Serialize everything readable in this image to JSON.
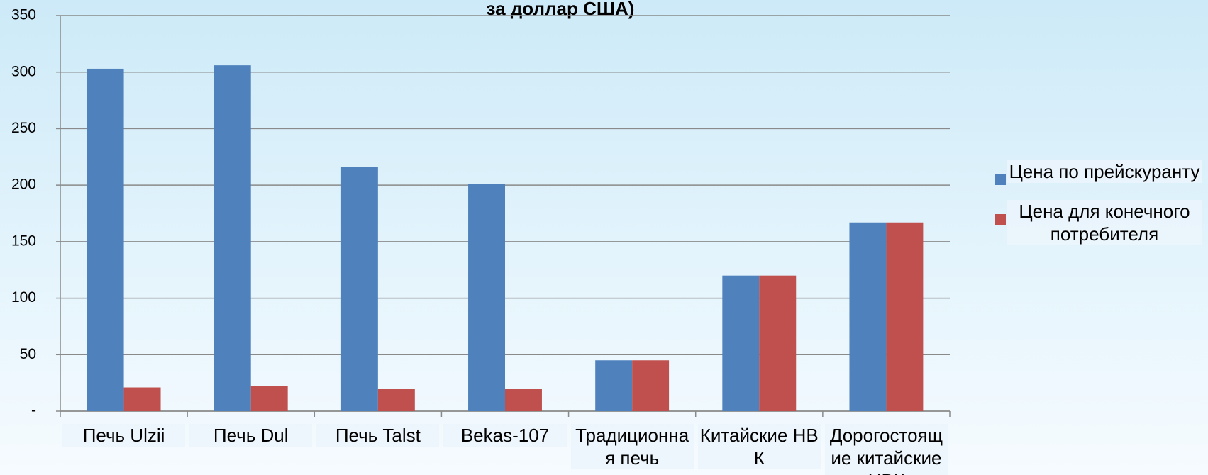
{
  "chart_data": {
    "type": "bar",
    "title": "за доллар США)",
    "categories": [
      "Печь Ulzii",
      "Печь Dul",
      "Печь Talst",
      "Bekas-107",
      "Традиционная печь",
      "Китайские НВК",
      "Дорогостоящие китайские НВК"
    ],
    "series": [
      {
        "name": "Цена по прейскуранту",
        "color": "#4f81bd",
        "values": [
          303,
          306,
          216,
          201,
          45,
          120,
          167
        ]
      },
      {
        "name": "Цена для конечного потребителя",
        "color": "#c0504d",
        "values": [
          21,
          22,
          20,
          20,
          45,
          120,
          167
        ]
      }
    ],
    "ylim": [
      0,
      350
    ],
    "yticks": [
      {
        "value": 0,
        "label": "-"
      },
      50,
      100,
      150,
      200,
      250,
      300,
      350
    ],
    "grid": true,
    "legend": "right"
  }
}
